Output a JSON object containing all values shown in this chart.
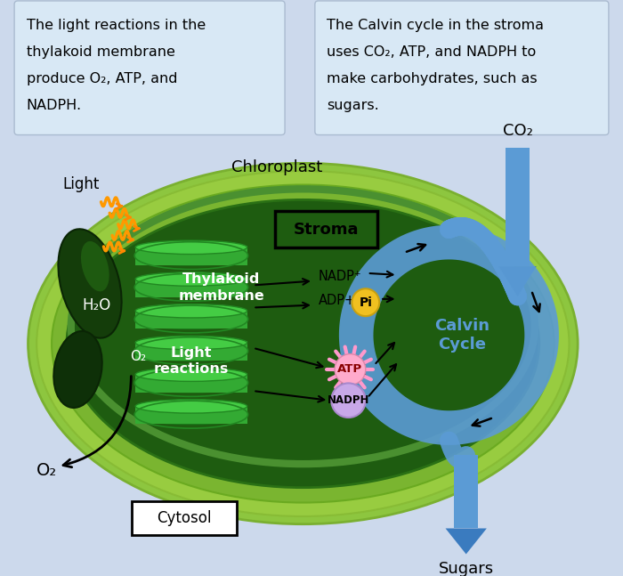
{
  "bg_color": "#ccd9ec",
  "box1_text_lines": [
    "The light reactions in the",
    "thylakoid membrane",
    "produce O₂, ATP, and",
    "NADPH."
  ],
  "box2_text_lines": [
    "The Calvin cycle in the stroma",
    "uses CO₂, ATP, and NADPH to",
    "make carbohydrates, such as",
    "sugars."
  ],
  "chloroplast_label": "Chloroplast",
  "stroma_label": "Stroma",
  "cytosol_label": "Cytosol",
  "light_label": "Light",
  "h2o_label": "H₂O",
  "o2_label_small": "O₂",
  "o2_label_big": "O₂",
  "co2_label": "CO₂",
  "sugars_label": "Sugars",
  "thylakoid_label": "Thylakoid\nmembrane",
  "light_reactions_label": "Light\nreactions",
  "calvin_cycle_label": "Calvin\nCycle",
  "nadp_label": "NADP⁺",
  "adp_label": "ADP+",
  "pi_label": "Pi",
  "atp_label": "ATP",
  "nadph_label": "NADPH",
  "outer_green": "#8dc63f",
  "mid_green": "#9ecf45",
  "inner_green": "#1e5c10",
  "thylakoid_bright": "#44cc44",
  "thylakoid_dark": "#228822",
  "thylakoid_mid": "#33aa33",
  "blue_color": "#5b9bd5",
  "blue_dark": "#3a7bbf",
  "box_bg": "#d8e8f5",
  "box_edge": "#aabbd0"
}
